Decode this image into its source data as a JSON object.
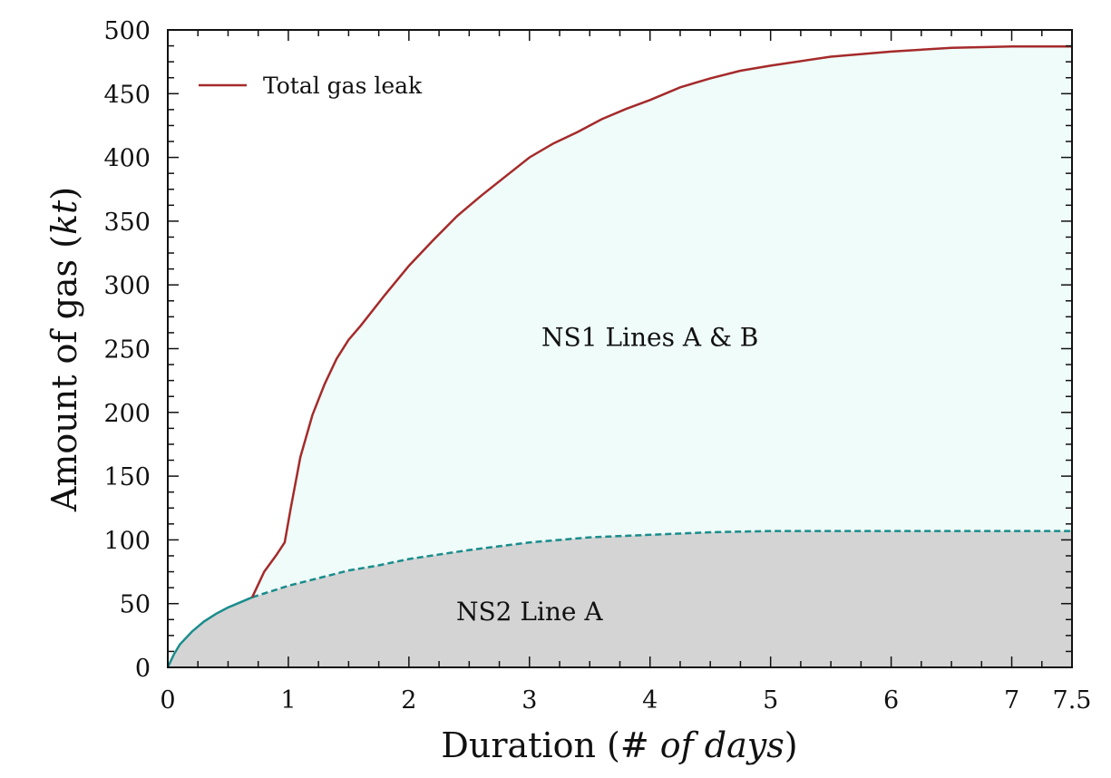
{
  "chart_data": {
    "type": "area",
    "xlabel_main": "Duration (",
    "xlabel_italic": "# of days",
    "xlabel_end": ")",
    "ylabel_main": "Amount of gas (",
    "ylabel_italic": "kt",
    "ylabel_end": ")",
    "xlim": [
      0,
      7.5
    ],
    "ylim": [
      0,
      500
    ],
    "x_ticks": [
      0,
      1,
      2,
      3,
      4,
      5,
      6,
      7,
      7.5
    ],
    "x_tick_labels": [
      "0",
      "1",
      "2",
      "3",
      "4",
      "5",
      "6",
      "7",
      "7.5"
    ],
    "y_ticks": [
      0,
      50,
      100,
      150,
      200,
      250,
      300,
      350,
      400,
      450,
      500
    ],
    "y_tick_labels": [
      "0",
      "50",
      "100",
      "150",
      "200",
      "250",
      "300",
      "350",
      "400",
      "450",
      "500"
    ],
    "legend": {
      "position": "top-left",
      "entries": [
        "Total gas leak"
      ]
    },
    "region_labels": {
      "upper": "NS1 Lines A & B",
      "lower": "NS2 Line A"
    },
    "colors": {
      "total": "#a52a2a",
      "ns2": "#1a8c8c",
      "upper_fill": "#effcf9",
      "lower_fill": "#d4d4d4",
      "axis": "#111111"
    },
    "series": [
      {
        "name": "Total gas leak",
        "x": [
          0,
          0.05,
          0.1,
          0.2,
          0.3,
          0.4,
          0.5,
          0.6,
          0.7,
          0.8,
          0.9,
          0.97,
          1.02,
          1.1,
          1.2,
          1.3,
          1.4,
          1.5,
          1.6,
          1.8,
          2.0,
          2.2,
          2.4,
          2.6,
          2.8,
          3.0,
          3.2,
          3.4,
          3.6,
          3.8,
          4.0,
          4.25,
          4.5,
          4.75,
          5.0,
          5.5,
          6.0,
          6.5,
          7.0,
          7.5
        ],
        "values": [
          0,
          10,
          18,
          28,
          36,
          42,
          47,
          51,
          55,
          75,
          88,
          98,
          125,
          165,
          198,
          222,
          242,
          257,
          268,
          292,
          315,
          335,
          354,
          370,
          385,
          400,
          411,
          420,
          430,
          438,
          445,
          455,
          462,
          468,
          472,
          479,
          483,
          486,
          487,
          487
        ]
      },
      {
        "name": "",
        "x": [
          0,
          0.05,
          0.1,
          0.2,
          0.3,
          0.4,
          0.5,
          0.6,
          0.7,
          0.8,
          1.0,
          1.25,
          1.5,
          1.75,
          2.0,
          2.5,
          3.0,
          3.5,
          4.0,
          4.5,
          5.0,
          5.5,
          6.0,
          6.5,
          7.0,
          7.5
        ],
        "values": [
          0,
          10,
          18,
          28,
          36,
          42,
          47,
          51,
          55,
          58,
          64,
          70,
          76,
          80,
          85,
          92,
          98,
          102,
          104,
          106,
          107,
          107,
          107,
          107,
          107,
          107
        ]
      }
    ]
  }
}
